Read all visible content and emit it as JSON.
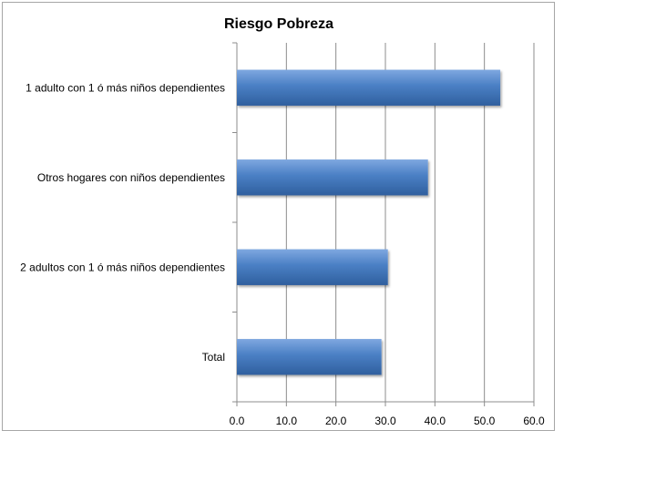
{
  "chart_data": {
    "type": "bar",
    "orientation": "horizontal",
    "title": "Riesgo Pobreza",
    "categories": [
      "1 adulto con 1 ó más niños dependientes",
      "Otros hogares con niños dependientes",
      "2 adultos con 1 ó más niños dependientes",
      "Total"
    ],
    "values": [
      53.2,
      38.6,
      30.5,
      29.2
    ],
    "xlim": [
      0,
      60
    ],
    "xticks": [
      "0.0",
      "10.0",
      "20.0",
      "30.0",
      "40.0",
      "50.0",
      "60.0"
    ],
    "xlabel": "",
    "ylabel": "",
    "grid": "vertical",
    "legend": "none",
    "bar_color": "#4a7fc4",
    "bar_color_dark": "#2f5f9e",
    "bar_color_light": "#7fa8e0"
  }
}
